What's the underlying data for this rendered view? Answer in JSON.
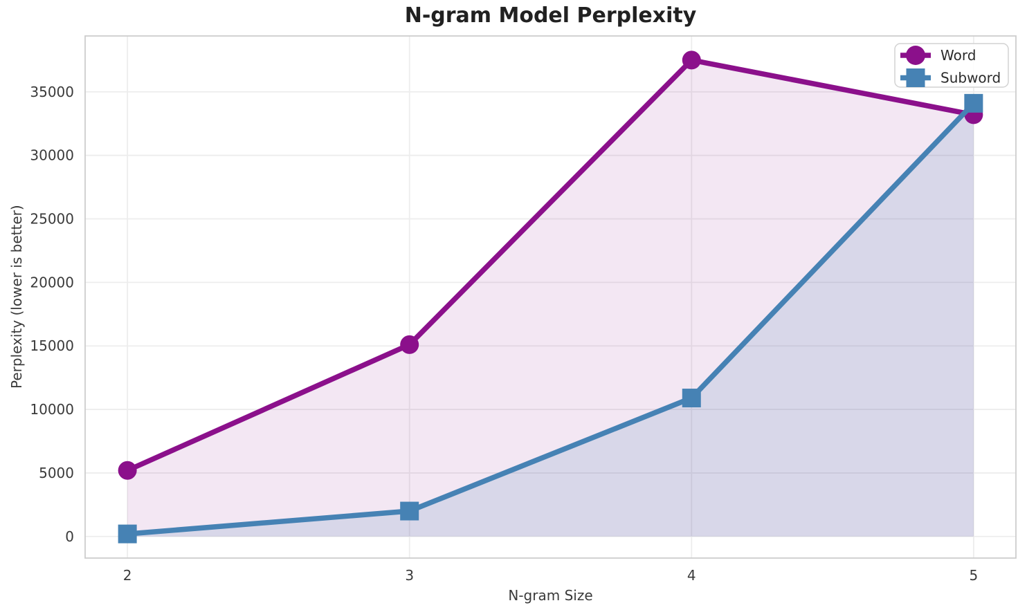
{
  "chart_data": {
    "type": "line",
    "title": "N-gram Model Perplexity",
    "xlabel": "N-gram Size",
    "ylabel": "Perplexity (lower is better)",
    "x": [
      2,
      3,
      4,
      5
    ],
    "xticks": [
      2,
      3,
      4,
      5
    ],
    "yticks": [
      0,
      5000,
      10000,
      15000,
      20000,
      25000,
      30000,
      35000
    ],
    "xlim": [
      1.85,
      5.15
    ],
    "ylim": [
      -1700,
      39400
    ],
    "grid": true,
    "fill_baseline": 0,
    "background_color": "#ffffff",
    "legend": {
      "position": "top-right",
      "entries": [
        "Word",
        "Subword"
      ]
    },
    "series": [
      {
        "name": "Word",
        "marker": "circle",
        "color": "#8B108B",
        "fill_opacity": 0.1,
        "values": [
          5200,
          15100,
          37500,
          33200
        ]
      },
      {
        "name": "Subword",
        "marker": "square",
        "color": "#4682B4",
        "fill_opacity": 0.15,
        "values": [
          200,
          2000,
          10900,
          34100
        ]
      }
    ]
  }
}
